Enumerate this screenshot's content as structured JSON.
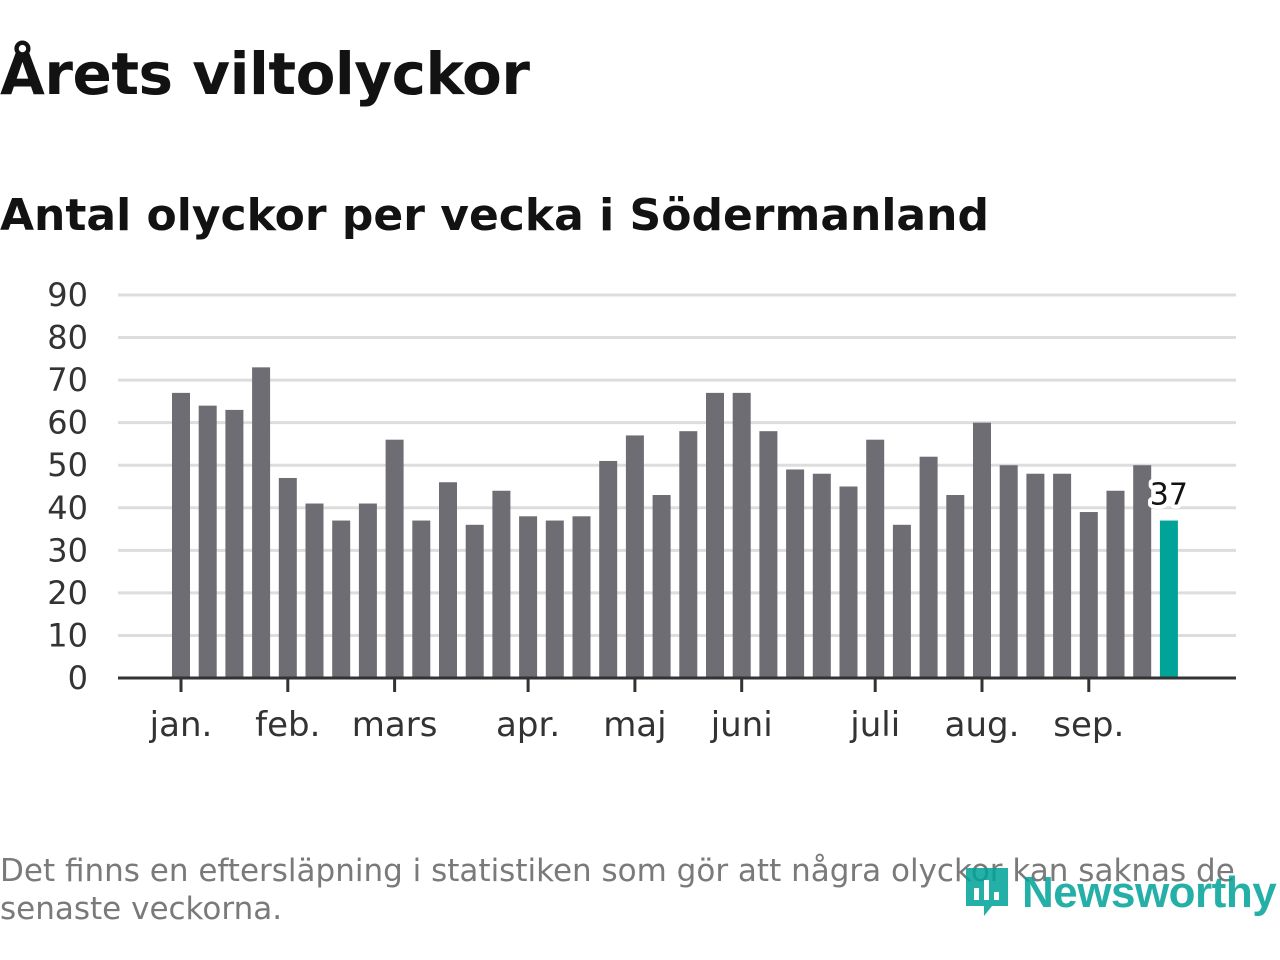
{
  "title": "Årets viltolyckor",
  "subtitle": "Antal olyckor per vecka i Södermanland",
  "footnote": "Det finns en eftersläpning i statistiken som gör att några olyckor kan saknas de senaste veckorna.",
  "brand": {
    "name": "Newsworthy",
    "icon": "bar-chart-logo-icon",
    "color": "#00a398"
  },
  "chart_data": {
    "type": "bar",
    "title": "Antal olyckor per vecka i Södermanland",
    "xlabel": "",
    "ylabel": "",
    "ylim": [
      0,
      90
    ],
    "yticks": [
      "0",
      "10",
      "20",
      "30",
      "40",
      "50",
      "60",
      "70",
      "80",
      "90"
    ],
    "grid": true,
    "bar_color": "#6e6d73",
    "highlight_color": "#00a398",
    "values": [
      67,
      64,
      63,
      73,
      47,
      41,
      37,
      41,
      56,
      37,
      46,
      36,
      44,
      38,
      37,
      38,
      51,
      57,
      43,
      58,
      67,
      67,
      58,
      49,
      48,
      45,
      56,
      36,
      52,
      43,
      60,
      50,
      48,
      48,
      39,
      44,
      50,
      37
    ],
    "highlight_index": 37,
    "highlight_label": "37",
    "month_labels": [
      {
        "label": "jan.",
        "index": 0.0
      },
      {
        "label": "feb.",
        "index": 4.0
      },
      {
        "label": "mars",
        "index": 8.0
      },
      {
        "label": "apr.",
        "index": 13.0
      },
      {
        "label": "maj",
        "index": 17.0
      },
      {
        "label": "juni",
        "index": 21.0
      },
      {
        "label": "juli",
        "index": 26.0
      },
      {
        "label": "aug.",
        "index": 30.0
      },
      {
        "label": "sep.",
        "index": 34.0
      }
    ]
  }
}
